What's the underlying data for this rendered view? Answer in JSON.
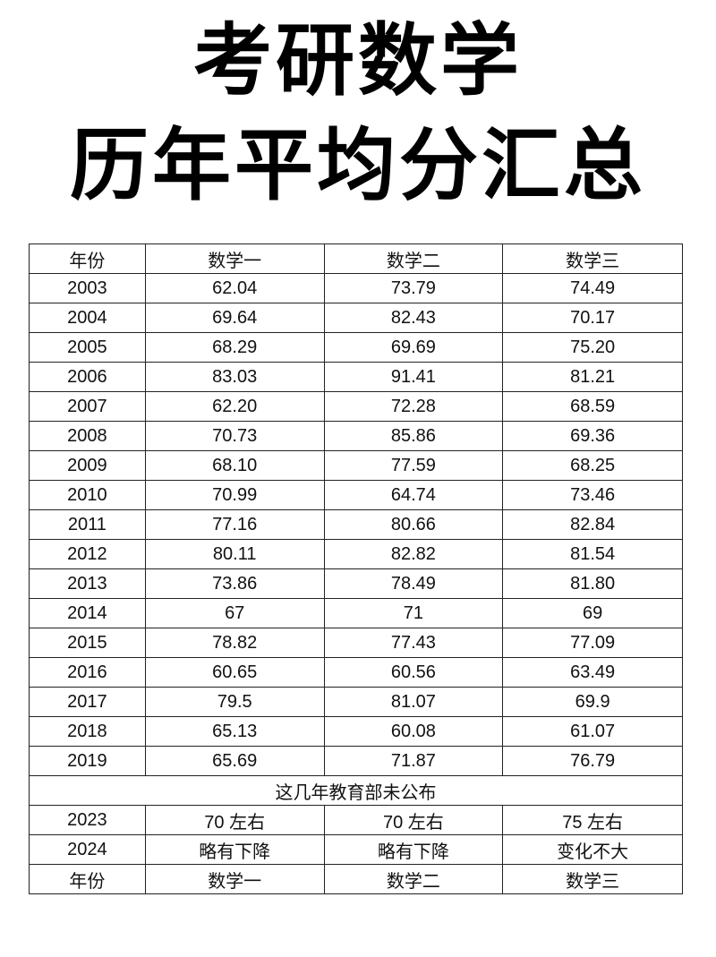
{
  "title": {
    "line1": "考研数学",
    "line2": "历年平均分汇总"
  },
  "table": {
    "headers": [
      "年份",
      "数学一",
      "数学二",
      "数学三"
    ],
    "rows": [
      [
        "2003",
        "62.04",
        "73.79",
        "74.49"
      ],
      [
        "2004",
        "69.64",
        "82.43",
        "70.17"
      ],
      [
        "2005",
        "68.29",
        "69.69",
        "75.20"
      ],
      [
        "2006",
        "83.03",
        "91.41",
        "81.21"
      ],
      [
        "2007",
        "62.20",
        "72.28",
        "68.59"
      ],
      [
        "2008",
        "70.73",
        "85.86",
        "69.36"
      ],
      [
        "2009",
        "68.10",
        "77.59",
        "68.25"
      ],
      [
        "2010",
        "70.99",
        "64.74",
        "73.46"
      ],
      [
        "2011",
        "77.16",
        "80.66",
        "82.84"
      ],
      [
        "2012",
        "80.11",
        "82.82",
        "81.54"
      ],
      [
        "2013",
        "73.86",
        "78.49",
        "81.80"
      ],
      [
        "2014",
        "67",
        "71",
        "69"
      ],
      [
        "2015",
        "78.82",
        "77.43",
        "77.09"
      ],
      [
        "2016",
        "60.65",
        "60.56",
        "63.49"
      ],
      [
        "2017",
        "79.5",
        "81.07",
        "69.9"
      ],
      [
        "2018",
        "65.13",
        "60.08",
        "61.07"
      ],
      [
        "2019",
        "65.69",
        "71.87",
        "76.79"
      ]
    ],
    "note": "这几年教育部未公布",
    "later_rows": [
      [
        "2023",
        "70 左右",
        "70 左右",
        "75 左右"
      ],
      [
        "2024",
        "略有下降",
        "略有下降",
        "变化不大"
      ]
    ],
    "footer": [
      "年份",
      "数学一",
      "数学二",
      "数学三"
    ]
  }
}
